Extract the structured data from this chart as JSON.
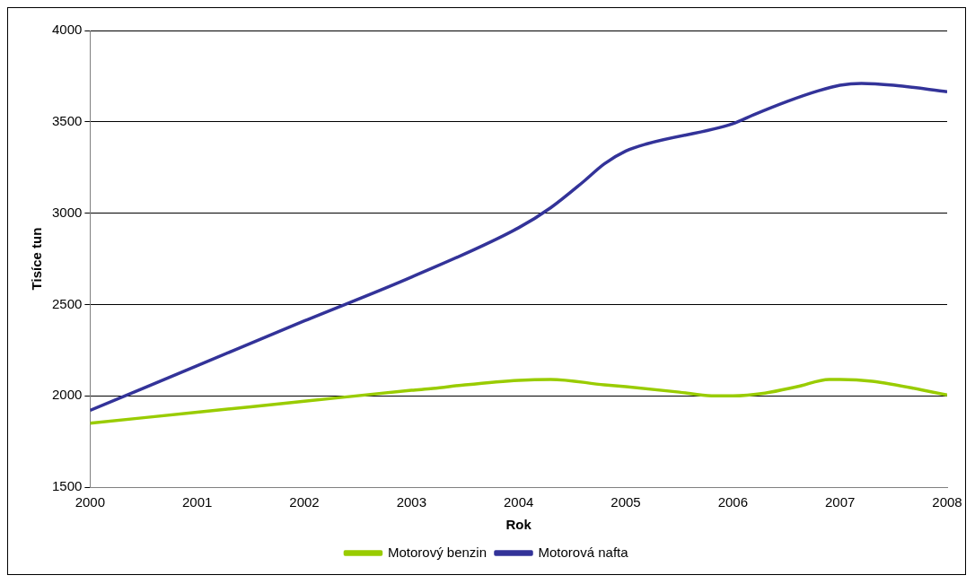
{
  "chart_data": {
    "type": "line",
    "xlabel": "Rok",
    "ylabel": "Tisíce tun",
    "xlim": [
      2000,
      2008
    ],
    "xticks": [
      2000,
      2001,
      2002,
      2003,
      2004,
      2005,
      2006,
      2007,
      2008
    ],
    "ylim": [
      1500,
      4000
    ],
    "yticks": [
      1500,
      2000,
      2500,
      3000,
      3500,
      4000
    ],
    "grid": "y",
    "legend": "bottom",
    "marker": "none",
    "line_style": "solid",
    "series": [
      {
        "name": "Motorový benzin",
        "color": "#99cc00",
        "x": [
          2000,
          2001,
          2002,
          2003,
          2003.2,
          2003.5,
          2004,
          2004.3,
          2004.8,
          2005,
          2005.5,
          2005.8,
          2006,
          2006.3,
          2006.6,
          2006.9,
          2007,
          2007.3,
          2008
        ],
        "values": [
          1850,
          1910,
          1970,
          2030,
          2040,
          2060,
          2085,
          2090,
          2060,
          2050,
          2020,
          2000,
          2000,
          2015,
          2050,
          2090,
          2090,
          2080,
          2005
        ]
      },
      {
        "name": "Motorová nafta",
        "color": "#333399",
        "x": [
          2000,
          2001,
          2002,
          2003,
          2004,
          2004.3,
          2004.6,
          2004.8,
          2005,
          2005.2,
          2006,
          2006.2,
          2006.5,
          2006.8,
          2007,
          2007.2,
          2007.5,
          2008
        ],
        "values": [
          1920,
          2165,
          2410,
          2650,
          2920,
          3030,
          3170,
          3270,
          3340,
          3380,
          3490,
          3540,
          3610,
          3670,
          3700,
          3710,
          3700,
          3665
        ]
      }
    ]
  }
}
